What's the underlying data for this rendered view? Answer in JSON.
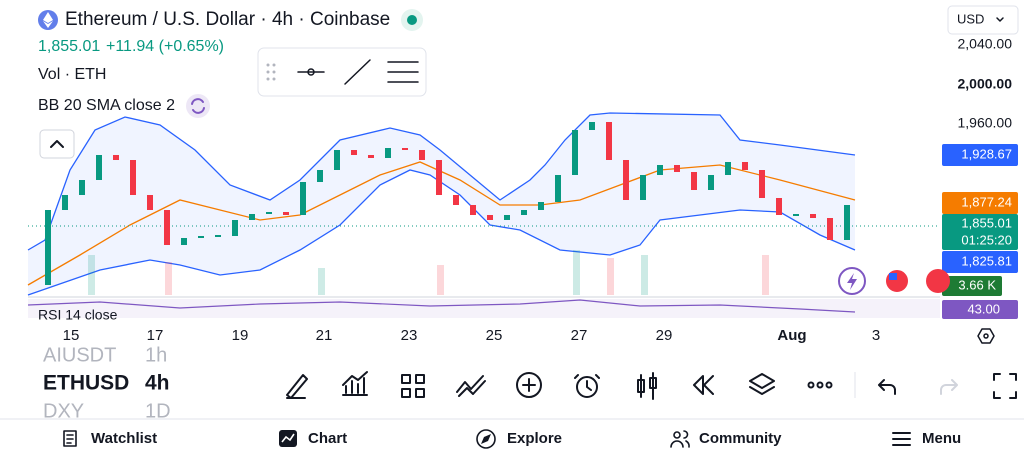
{
  "header": {
    "title": "Ethereum / U.S. Dollar · 4h · Coinbase",
    "price": "1,855.01",
    "change": "+11.94 (+0.65%)",
    "volume_label": "Vol · ETH",
    "indicator_label": "BB 20 SMA close 2",
    "rsi_label": "RSI 14 close",
    "currency": "USD"
  },
  "price_scale": [
    "2,040.00",
    "2,000.00",
    "1,960.00"
  ],
  "price_tags": [
    {
      "label": "1,928.67",
      "color": "#2962ff"
    },
    {
      "label": "1,877.24",
      "color": "#f57c00"
    },
    {
      "label": "1,855.01",
      "sublabel": "01:25:20",
      "color": "#089981"
    },
    {
      "label": "1,825.81",
      "color": "#2962ff"
    },
    {
      "label": "3.66 K",
      "color": "#1e7b34"
    },
    {
      "label": "43.00",
      "color": "#7e57c2"
    }
  ],
  "time_axis": [
    "15",
    "17",
    "19",
    "21",
    "23",
    "25",
    "27",
    "29",
    "Aug",
    "3"
  ],
  "symbols": [
    {
      "symbol": "AIUSDT",
      "interval": "1h"
    },
    {
      "symbol": "ETHUSD",
      "interval": "4h"
    },
    {
      "symbol": "DXY",
      "interval": "1D"
    }
  ],
  "bottom_nav": [
    "Watchlist",
    "Chart",
    "Explore",
    "Community",
    "Menu"
  ]
}
